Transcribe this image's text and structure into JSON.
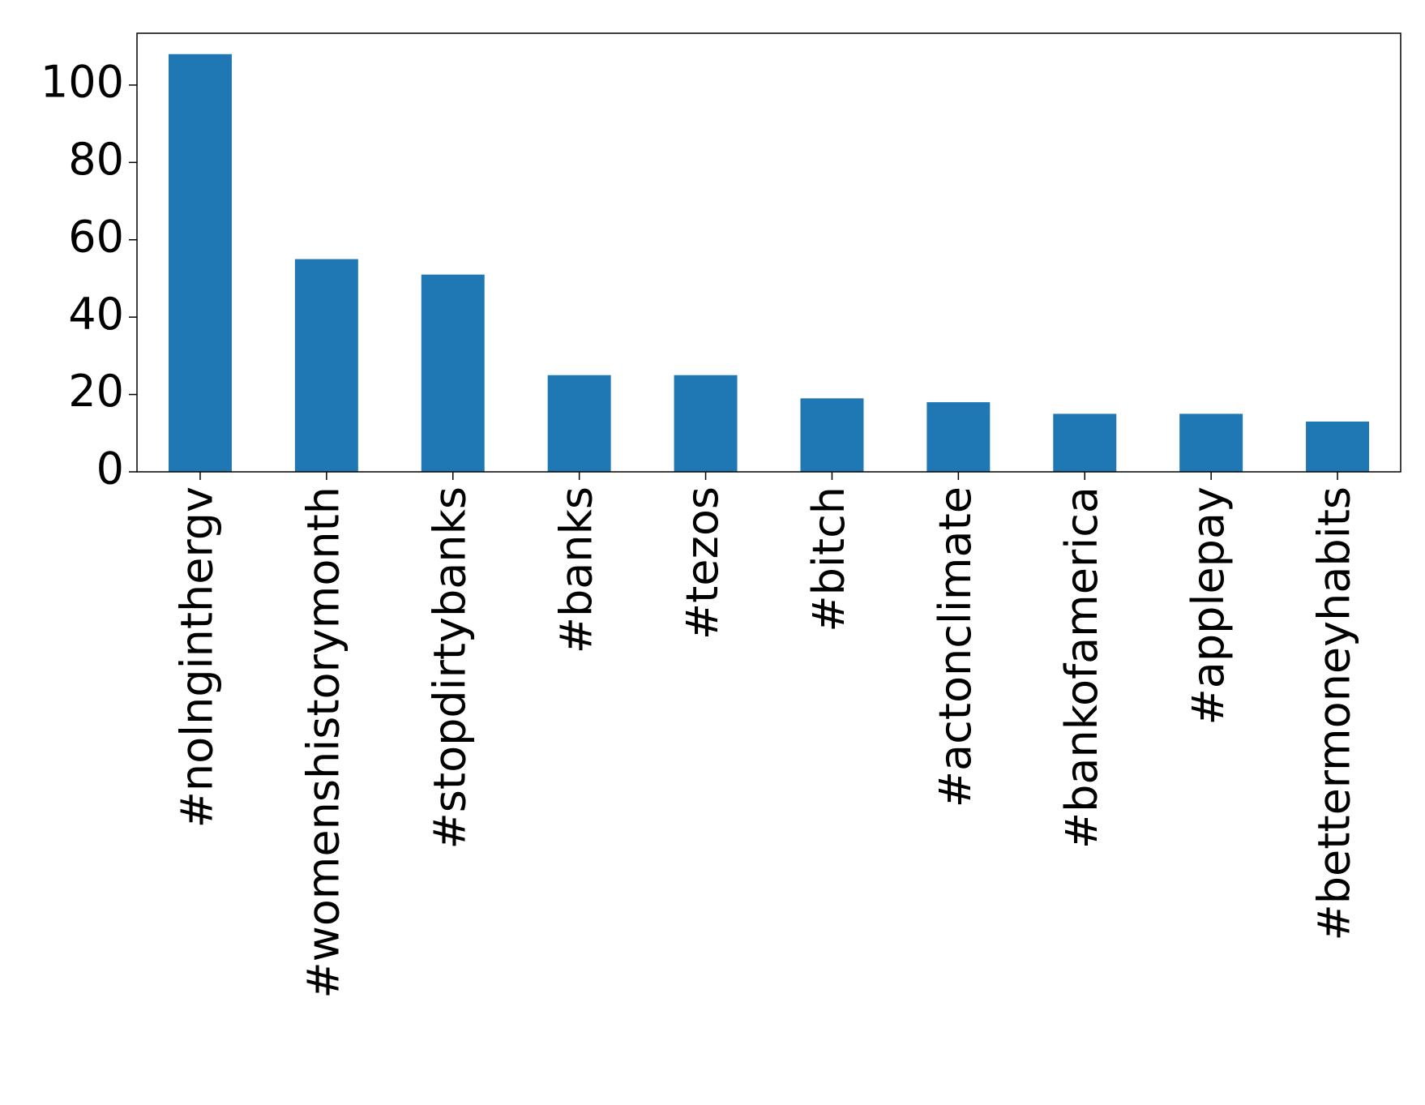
{
  "chart_data": {
    "type": "bar",
    "categories": [
      "#nolnginthergv",
      "#womenshistorymonth",
      "#stopdirtybanks",
      "#banks",
      "#tezos",
      "#bitch",
      "#actonclimate",
      "#bankofamerica",
      "#applepay",
      "#bettermoneyhabits"
    ],
    "values": [
      108,
      55,
      51,
      25,
      25,
      19,
      18,
      15,
      15,
      13
    ],
    "color": "#1f77b4",
    "ylim": [
      0,
      113.4
    ],
    "yticks": [
      0,
      20,
      40,
      60,
      80,
      100
    ],
    "grid": false
  }
}
